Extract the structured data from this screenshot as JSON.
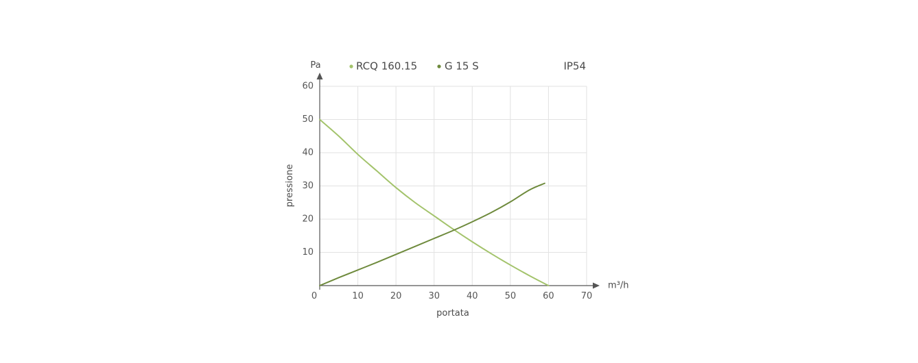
{
  "chart_data": {
    "type": "line",
    "badge": "IP54",
    "xlabel": "portata",
    "ylabel": "pressione",
    "xunit": "m³/h",
    "yunit": "Pa",
    "xlim": [
      0,
      70
    ],
    "ylim": [
      0,
      60
    ],
    "xticks": [
      "0",
      "10",
      "20",
      "30",
      "40",
      "50",
      "60",
      "70"
    ],
    "yticks": [
      "10",
      "20",
      "30",
      "40",
      "50",
      "60"
    ],
    "grid": true,
    "legend_position": "top",
    "series": [
      {
        "name": "RCQ 160.15",
        "color": "#a3c36b",
        "x": [
          0,
          5,
          10,
          15,
          20,
          25,
          30,
          35,
          40,
          45,
          50,
          55,
          60
        ],
        "y": [
          50,
          45,
          39.5,
          34.5,
          29.5,
          25,
          21,
          17,
          13.2,
          9.6,
          6.2,
          3,
          0
        ]
      },
      {
        "name": "G 15 S",
        "color": "#6e8a3c",
        "x": [
          0,
          5,
          10,
          15,
          20,
          25,
          30,
          35,
          40,
          45,
          50,
          55,
          59
        ],
        "y": [
          0,
          2.4,
          4.7,
          7,
          9.4,
          11.8,
          14.2,
          16.6,
          19.2,
          22,
          25.2,
          28.8,
          30.8
        ]
      }
    ]
  }
}
